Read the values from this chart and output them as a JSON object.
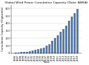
{
  "title": "Global Wind Power Cumulative Capacity (Data: AWEA)",
  "xlabel": "Year",
  "ylabel": "Cumulative Capacity (Gigawatts)",
  "years": [
    1996,
    1997,
    1998,
    1999,
    2000,
    2001,
    2002,
    2003,
    2004,
    2005,
    2006,
    2007,
    2008,
    2009,
    2010,
    2011,
    2012,
    2013,
    2014,
    2015,
    2016,
    2017,
    2018
  ],
  "values": [
    6.1,
    7.6,
    10.2,
    13.6,
    17.4,
    23.9,
    31.1,
    39.4,
    47.6,
    59.1,
    74.1,
    93.8,
    120.9,
    159.2,
    197.0,
    237.7,
    282.4,
    318.1,
    369.6,
    432.9,
    487.0,
    539.0,
    591.0
  ],
  "bar_color": "#4e7dbf",
  "bg_color": "#ffffff",
  "title_fontsize": 3.2,
  "tick_fontsize": 2.5,
  "label_fontsize": 2.8,
  "ylim": [
    0,
    650
  ],
  "yticks": [
    0,
    100,
    200,
    300,
    400,
    500,
    600
  ]
}
